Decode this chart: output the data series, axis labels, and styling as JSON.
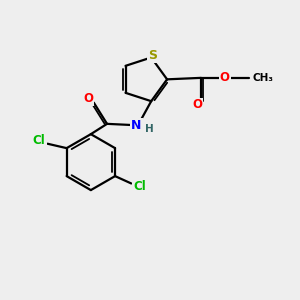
{
  "bg_color": "#eeeeee",
  "atom_colors": {
    "S": "#999900",
    "O": "#ff0000",
    "N": "#0000ff",
    "Cl": "#00bb00",
    "C": "#000000",
    "H": "#336666"
  },
  "bond_color": "#000000"
}
